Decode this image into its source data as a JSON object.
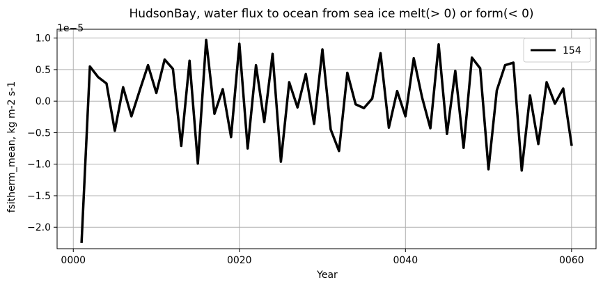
{
  "chart_data": {
    "type": "line",
    "title": "HudsonBay, water flux to ocean from sea ice melt(> 0) or form(< 0)",
    "xlabel": "Year",
    "ylabel": "fsitherm_mean, kg m-2 s-1",
    "y_offset_label": "1e−5",
    "xlim": [
      -1.95,
      62.95
    ],
    "ylim": [
      -2.34,
      1.14
    ],
    "x_ticks": [
      0,
      20,
      40,
      60
    ],
    "x_tick_labels": [
      "0000",
      "0020",
      "0040",
      "0060"
    ],
    "y_ticks": [
      -2.0,
      -1.5,
      -1.0,
      -0.5,
      0.0,
      0.5,
      1.0
    ],
    "y_tick_labels": [
      "−2.0",
      "−1.5",
      "−1.0",
      "−0.5",
      "0.0",
      "0.5",
      "1.0"
    ],
    "grid": true,
    "legend_position": "top-right",
    "series": [
      {
        "name": "154",
        "color": "#000000",
        "x": [
          1,
          2,
          3,
          4,
          5,
          6,
          7,
          8,
          9,
          10,
          11,
          12,
          13,
          14,
          15,
          16,
          17,
          18,
          19,
          20,
          21,
          22,
          23,
          24,
          25,
          26,
          27,
          28,
          29,
          30,
          31,
          32,
          33,
          34,
          35,
          36,
          37,
          38,
          39,
          40,
          41,
          42,
          43,
          44,
          45,
          46,
          47,
          48,
          49,
          50,
          51,
          52,
          53,
          54,
          55,
          56,
          57,
          58,
          59,
          60
        ],
        "values": [
          -2.23,
          0.55,
          0.38,
          0.28,
          -0.47,
          0.22,
          -0.24,
          0.17,
          0.57,
          0.13,
          0.66,
          0.51,
          -0.71,
          0.64,
          -0.99,
          0.97,
          -0.2,
          0.19,
          -0.57,
          0.91,
          -0.75,
          0.57,
          -0.33,
          0.75,
          -0.96,
          0.3,
          -0.1,
          0.43,
          -0.36,
          0.82,
          -0.45,
          -0.79,
          0.45,
          -0.05,
          -0.11,
          0.04,
          0.76,
          -0.42,
          0.16,
          -0.24,
          0.68,
          0.06,
          -0.43,
          0.9,
          -0.52,
          0.48,
          -0.74,
          0.69,
          0.52,
          -1.08,
          0.17,
          0.57,
          0.61,
          -1.1,
          0.09,
          -0.68,
          0.3,
          -0.04,
          0.2,
          -0.69
        ]
      }
    ]
  }
}
